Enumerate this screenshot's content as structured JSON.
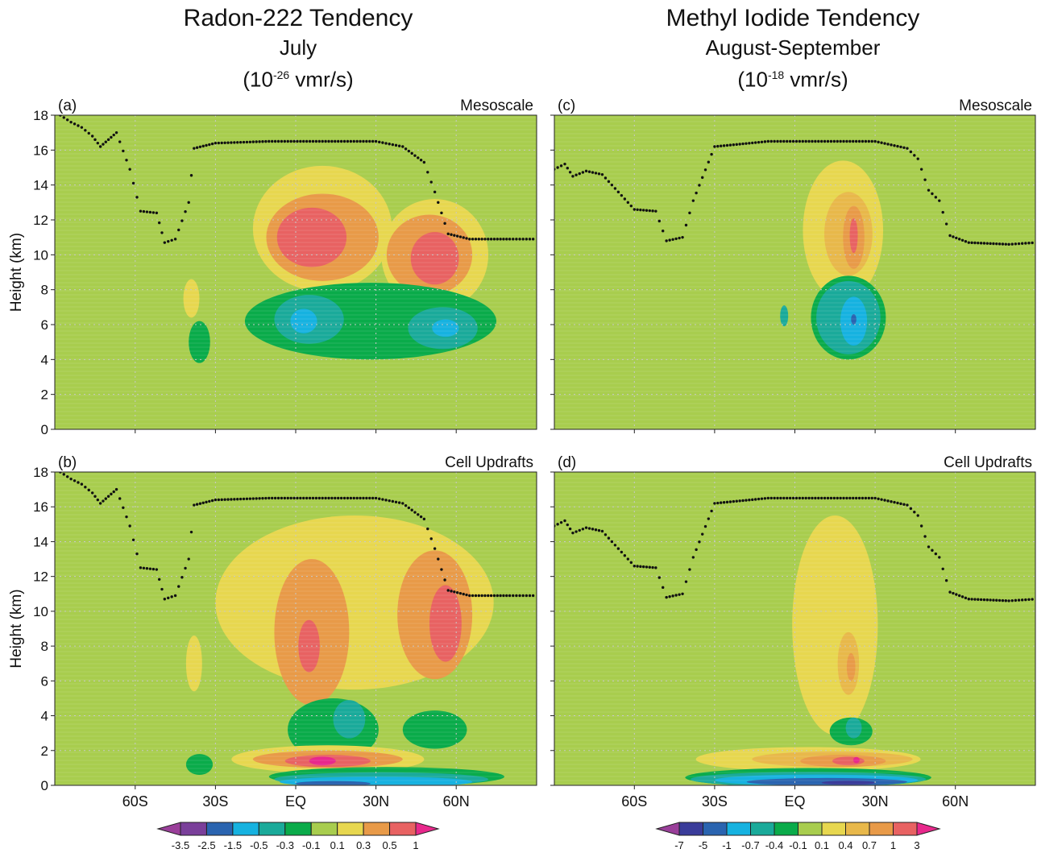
{
  "columns": [
    {
      "title": "Radon-222 Tendency",
      "period": "July",
      "units_pre": "(10",
      "units_exp": "-26",
      "units_post": " vmr/s)"
    },
    {
      "title": "Methyl Iodide Tendency",
      "period": "August-September",
      "units_pre": "(10",
      "units_exp": "-18",
      "units_post": " vmr/s)"
    }
  ],
  "chart_data": [
    {
      "type": "heatmap",
      "panel": "(a)",
      "label": "Mesoscale",
      "ylabel": "Height (km)",
      "ylim": [
        0,
        18
      ],
      "yticks": [
        0,
        2,
        4,
        6,
        8,
        10,
        12,
        14,
        16,
        18
      ],
      "xlim": [
        -90,
        90
      ],
      "xticks": [
        -60,
        -30,
        0,
        30,
        60
      ],
      "xticklabels": [],
      "grid": "dotted",
      "background": "0.1 to -0.1",
      "contours": [
        {
          "level": "0.1",
          "color": "#e7d74f",
          "cx": 10,
          "cy": 11.5,
          "rx": 26,
          "ry": 3.6
        },
        {
          "level": "0.1",
          "color": "#e7d74f",
          "cx": 52,
          "cy": 10,
          "rx": 20,
          "ry": 3.2
        },
        {
          "level": "0.1",
          "color": "#e7d74f",
          "cx": -39,
          "cy": 7.5,
          "rx": 3,
          "ry": 1.1
        },
        {
          "level": "0.3",
          "color": "#e89a48",
          "cx": 10,
          "cy": 11,
          "rx": 21,
          "ry": 2.5
        },
        {
          "level": "0.3",
          "color": "#e89a48",
          "cx": 50,
          "cy": 10,
          "rx": 16,
          "ry": 2.3
        },
        {
          "level": "0.5",
          "color": "#e86262",
          "cx": 6,
          "cy": 11,
          "rx": 13,
          "ry": 1.7
        },
        {
          "level": "0.5",
          "color": "#e86262",
          "cx": 52,
          "cy": 9.8,
          "rx": 9,
          "ry": 1.5
        },
        {
          "level": "-0.1",
          "color": "#0aab4a",
          "cx": 28,
          "cy": 6.2,
          "rx": 47,
          "ry": 2.2
        },
        {
          "level": "-0.1",
          "color": "#0aab4a",
          "cx": -36,
          "cy": 5,
          "rx": 4,
          "ry": 1.2
        },
        {
          "level": "-0.3",
          "color": "#1aaa9a",
          "cx": 5,
          "cy": 6.3,
          "rx": 13,
          "ry": 1.4
        },
        {
          "level": "-0.3",
          "color": "#1aaa9a",
          "cx": 55,
          "cy": 5.8,
          "rx": 13,
          "ry": 1.2
        },
        {
          "level": "-0.5",
          "color": "#16b2e0",
          "cx": 3,
          "cy": 6.2,
          "rx": 5,
          "ry": 0.7
        },
        {
          "level": "-0.5",
          "color": "#16b2e0",
          "cx": 56,
          "cy": 5.8,
          "rx": 5,
          "ry": 0.5
        }
      ],
      "tropopause": [
        [
          -88,
          18.0
        ],
        [
          -84,
          17.6
        ],
        [
          -80,
          17.3
        ],
        [
          -76,
          16.8
        ],
        [
          -73,
          16.2
        ],
        [
          -70,
          16.6
        ],
        [
          -67,
          17.0
        ],
        [
          -62,
          14.9
        ],
        [
          -58,
          12.5
        ],
        [
          -52,
          12.4
        ],
        [
          -49,
          10.7
        ],
        [
          -45,
          10.9
        ],
        [
          -40,
          13.0
        ],
        [
          -38,
          16.1
        ],
        [
          -30,
          16.4
        ],
        [
          -10,
          16.5
        ],
        [
          10,
          16.5
        ],
        [
          30,
          16.5
        ],
        [
          40,
          16.2
        ],
        [
          48,
          15.3
        ],
        [
          52,
          13.6
        ],
        [
          57,
          11.2
        ],
        [
          65,
          10.9
        ],
        [
          80,
          10.9
        ],
        [
          90,
          10.9
        ]
      ]
    },
    {
      "type": "heatmap",
      "panel": "(b)",
      "label": "Cell Updrafts",
      "ylabel": "Height (km)",
      "ylim": [
        0,
        18
      ],
      "yticks": [
        0,
        2,
        4,
        6,
        8,
        10,
        12,
        14,
        16,
        18
      ],
      "xlim": [
        -90,
        90
      ],
      "xticks": [
        -60,
        -30,
        0,
        30,
        60
      ],
      "xticklabels": [
        "60S",
        "30S",
        "EQ",
        "30N",
        "60N"
      ],
      "grid": "dotted",
      "background": "0.1 to -0.1",
      "contours": [
        {
          "level": "0.1",
          "color": "#e7d74f",
          "cx": 22,
          "cy": 10.5,
          "rx": 52,
          "ry": 5.0
        },
        {
          "level": "0.1",
          "color": "#e7d74f",
          "cx": -38,
          "cy": 7,
          "rx": 3,
          "ry": 1.6
        },
        {
          "level": "0.3",
          "color": "#e89a48",
          "cx": 6,
          "cy": 8.8,
          "rx": 14,
          "ry": 4.2
        },
        {
          "level": "0.3",
          "color": "#e89a48",
          "cx": 52,
          "cy": 9.8,
          "rx": 14,
          "ry": 3.7
        },
        {
          "level": "0.5",
          "color": "#e86262",
          "cx": 5,
          "cy": 8.0,
          "rx": 4,
          "ry": 1.5
        },
        {
          "level": "0.5",
          "color": "#e86262",
          "cx": 56,
          "cy": 9.3,
          "rx": 6,
          "ry": 2.2
        },
        {
          "level": "-0.1",
          "color": "#0aab4a",
          "cx": 14,
          "cy": 3.2,
          "rx": 17,
          "ry": 1.8
        },
        {
          "level": "-0.1",
          "color": "#0aab4a",
          "cx": 52,
          "cy": 3.2,
          "rx": 12,
          "ry": 1.1
        },
        {
          "level": "-0.1",
          "color": "#0aab4a",
          "cx": -36,
          "cy": 1.2,
          "rx": 5,
          "ry": 0.6
        },
        {
          "level": "-0.3",
          "color": "#1aaa9a",
          "cx": 20,
          "cy": 3.8,
          "rx": 6,
          "ry": 1.1
        },
        {
          "level": "0.1",
          "color": "#e7d74f",
          "cx": 12,
          "cy": 1.5,
          "rx": 36,
          "ry": 0.8
        },
        {
          "level": "0.3",
          "color": "#e89a48",
          "cx": 12,
          "cy": 1.5,
          "rx": 28,
          "ry": 0.5
        },
        {
          "level": "0.5",
          "color": "#e86262",
          "cx": 12,
          "cy": 1.4,
          "rx": 16,
          "ry": 0.35
        },
        {
          "level": "1",
          "color": "#e8288c",
          "cx": 10,
          "cy": 1.4,
          "rx": 5,
          "ry": 0.25
        },
        {
          "level": "-0.1",
          "color": "#0aab4a",
          "cx": 34,
          "cy": 0.5,
          "rx": 44,
          "ry": 0.55
        },
        {
          "level": "-0.3",
          "color": "#1aaa9a",
          "cx": 32,
          "cy": 0.35,
          "rx": 40,
          "ry": 0.4
        },
        {
          "level": "-0.5",
          "color": "#16b2e0",
          "cx": 30,
          "cy": 0.2,
          "rx": 36,
          "ry": 0.3
        },
        {
          "level": "-1.5",
          "color": "#2a64b0",
          "cx": 14,
          "cy": 0.1,
          "rx": 14,
          "ry": 0.15
        }
      ],
      "tropopause": [
        [
          -88,
          18.0
        ],
        [
          -84,
          17.6
        ],
        [
          -80,
          17.3
        ],
        [
          -76,
          16.8
        ],
        [
          -73,
          16.2
        ],
        [
          -70,
          16.6
        ],
        [
          -67,
          17.0
        ],
        [
          -62,
          14.9
        ],
        [
          -58,
          12.5
        ],
        [
          -52,
          12.4
        ],
        [
          -49,
          10.7
        ],
        [
          -45,
          10.9
        ],
        [
          -40,
          13.0
        ],
        [
          -38,
          16.1
        ],
        [
          -30,
          16.4
        ],
        [
          -10,
          16.5
        ],
        [
          10,
          16.5
        ],
        [
          30,
          16.5
        ],
        [
          40,
          16.2
        ],
        [
          48,
          15.3
        ],
        [
          52,
          13.6
        ],
        [
          57,
          11.2
        ],
        [
          65,
          10.9
        ],
        [
          80,
          10.9
        ],
        [
          90,
          10.9
        ]
      ]
    },
    {
      "type": "heatmap",
      "panel": "(c)",
      "label": "Mesoscale",
      "ylabel": "",
      "ylim": [
        0,
        18
      ],
      "yticks": [
        0,
        2,
        4,
        6,
        8,
        10,
        12,
        14,
        16,
        18
      ],
      "xlim": [
        -90,
        90
      ],
      "xticks": [
        -60,
        -30,
        0,
        30,
        60
      ],
      "xticklabels": [],
      "grid": "dotted",
      "background": "0.1 to -0.1",
      "contours": [
        {
          "level": "0.1",
          "color": "#e7d74f",
          "cx": 18,
          "cy": 11.4,
          "rx": 15,
          "ry": 4.0
        },
        {
          "level": "0.4",
          "color": "#e8b84a",
          "cx": 20,
          "cy": 11.2,
          "rx": 9,
          "ry": 2.4
        },
        {
          "level": "0.7",
          "color": "#e89a48",
          "cx": 22,
          "cy": 11.0,
          "rx": 4,
          "ry": 1.8
        },
        {
          "level": "1",
          "color": "#e86262",
          "cx": 22,
          "cy": 11.1,
          "rx": 1.5,
          "ry": 1.0
        },
        {
          "level": "-0.1",
          "color": "#0aab4a",
          "cx": 20,
          "cy": 6.4,
          "rx": 14,
          "ry": 2.4
        },
        {
          "level": "-0.4",
          "color": "#1aaa9a",
          "cx": 20,
          "cy": 6.4,
          "rx": 12,
          "ry": 2.1
        },
        {
          "level": "-0.4",
          "color": "#1aaa9a",
          "cx": -4,
          "cy": 6.5,
          "rx": 1.5,
          "ry": 0.6
        },
        {
          "level": "-0.7",
          "color": "#16b2e0",
          "cx": 22,
          "cy": 6.2,
          "rx": 5,
          "ry": 1.4
        },
        {
          "level": "-1",
          "color": "#2a64b0",
          "cx": 22,
          "cy": 6.3,
          "rx": 1.0,
          "ry": 0.3
        }
      ],
      "tropopause": [
        [
          -90,
          14.9
        ],
        [
          -86,
          15.2
        ],
        [
          -83,
          14.5
        ],
        [
          -78,
          14.8
        ],
        [
          -72,
          14.6
        ],
        [
          -60,
          12.6
        ],
        [
          -52,
          12.5
        ],
        [
          -48,
          10.8
        ],
        [
          -42,
          11.0
        ],
        [
          -38,
          13.1
        ],
        [
          -30,
          16.2
        ],
        [
          -10,
          16.5
        ],
        [
          10,
          16.5
        ],
        [
          30,
          16.5
        ],
        [
          42,
          16.1
        ],
        [
          46,
          15.5
        ],
        [
          50,
          13.7
        ],
        [
          54,
          13.1
        ],
        [
          58,
          11.1
        ],
        [
          65,
          10.7
        ],
        [
          80,
          10.6
        ],
        [
          90,
          10.7
        ]
      ]
    },
    {
      "type": "heatmap",
      "panel": "(d)",
      "label": "Cell Updrafts",
      "ylabel": "",
      "ylim": [
        0,
        18
      ],
      "yticks": [
        0,
        2,
        4,
        6,
        8,
        10,
        12,
        14,
        16,
        18
      ],
      "xlim": [
        -90,
        90
      ],
      "xticks": [
        -60,
        -30,
        0,
        30,
        60
      ],
      "xticklabels": [
        "60S",
        "30S",
        "EQ",
        "30N",
        "60N"
      ],
      "grid": "dotted",
      "background": "0.1 to -0.1",
      "contours": [
        {
          "level": "0.1",
          "color": "#e7d74f",
          "cx": 15,
          "cy": 9.2,
          "rx": 16,
          "ry": 6.3
        },
        {
          "level": "0.4",
          "color": "#e8b84a",
          "cx": 20,
          "cy": 7.0,
          "rx": 4,
          "ry": 1.8
        },
        {
          "level": "0.7",
          "color": "#e89a48",
          "cx": 21,
          "cy": 6.8,
          "rx": 1.6,
          "ry": 0.8
        },
        {
          "level": "-0.1",
          "color": "#0aab4a",
          "cx": 21,
          "cy": 3.1,
          "rx": 8,
          "ry": 0.8
        },
        {
          "level": "-0.4",
          "color": "#1aaa9a",
          "cx": 22,
          "cy": 3.3,
          "rx": 3,
          "ry": 0.6
        },
        {
          "level": "0.1",
          "color": "#e7d74f",
          "cx": 5,
          "cy": 1.5,
          "rx": 42,
          "ry": 0.7
        },
        {
          "level": "0.4",
          "color": "#e8b84a",
          "cx": 14,
          "cy": 1.5,
          "rx": 30,
          "ry": 0.45
        },
        {
          "level": "0.7",
          "color": "#e89a48",
          "cx": 18,
          "cy": 1.4,
          "rx": 16,
          "ry": 0.35
        },
        {
          "level": "1",
          "color": "#e86262",
          "cx": 20,
          "cy": 1.4,
          "rx": 6,
          "ry": 0.25
        },
        {
          "level": "3",
          "color": "#e8288c",
          "cx": 23,
          "cy": 1.45,
          "rx": 1.2,
          "ry": 0.18
        },
        {
          "level": "-0.1",
          "color": "#0aab4a",
          "cx": 5,
          "cy": 0.45,
          "rx": 46,
          "ry": 0.55
        },
        {
          "level": "-0.4",
          "color": "#1aaa9a",
          "cx": 5,
          "cy": 0.35,
          "rx": 44,
          "ry": 0.42
        },
        {
          "level": "-0.7",
          "color": "#16b2e0",
          "cx": 8,
          "cy": 0.3,
          "rx": 38,
          "ry": 0.32
        },
        {
          "level": "-1",
          "color": "#2a64b0",
          "cx": 12,
          "cy": 0.2,
          "rx": 30,
          "ry": 0.22
        },
        {
          "level": "-5",
          "color": "#3a3c9a",
          "cx": 20,
          "cy": 0.15,
          "rx": 10,
          "ry": 0.12
        }
      ],
      "tropopause": [
        [
          -90,
          14.9
        ],
        [
          -86,
          15.2
        ],
        [
          -83,
          14.5
        ],
        [
          -78,
          14.8
        ],
        [
          -72,
          14.6
        ],
        [
          -60,
          12.6
        ],
        [
          -52,
          12.5
        ],
        [
          -48,
          10.8
        ],
        [
          -42,
          11.0
        ],
        [
          -38,
          13.1
        ],
        [
          -30,
          16.2
        ],
        [
          -10,
          16.5
        ],
        [
          10,
          16.5
        ],
        [
          30,
          16.5
        ],
        [
          42,
          16.1
        ],
        [
          46,
          15.5
        ],
        [
          50,
          13.7
        ],
        [
          54,
          13.1
        ],
        [
          58,
          11.1
        ],
        [
          65,
          10.7
        ],
        [
          80,
          10.6
        ],
        [
          90,
          10.7
        ]
      ]
    }
  ],
  "colorbars": [
    {
      "labels": [
        "-3.5",
        "-2.5",
        "-1.5",
        "-0.5",
        "-0.3",
        "-0.1",
        "0.1",
        "0.3",
        "0.5",
        "1"
      ],
      "colors": [
        "#9a3f9a",
        "#7a3f9a",
        "#2a64b0",
        "#16b2e0",
        "#1aaa9a",
        "#0aab4a",
        "#a8cd4e",
        "#e7d74f",
        "#e89a48",
        "#e86262",
        "#e8288c"
      ]
    },
    {
      "labels": [
        "-7",
        "-5",
        "-1",
        "-0.7",
        "-0.4",
        "-0.1",
        "0.1",
        "0.4",
        "0.7",
        "1",
        "3"
      ],
      "colors": [
        "#9a3f9a",
        "#3a3c9a",
        "#2a64b0",
        "#16b2e0",
        "#1aaa9a",
        "#0aab4a",
        "#a8cd4e",
        "#e7d74f",
        "#e8b84a",
        "#e89a48",
        "#e86262",
        "#e8288c"
      ]
    }
  ]
}
